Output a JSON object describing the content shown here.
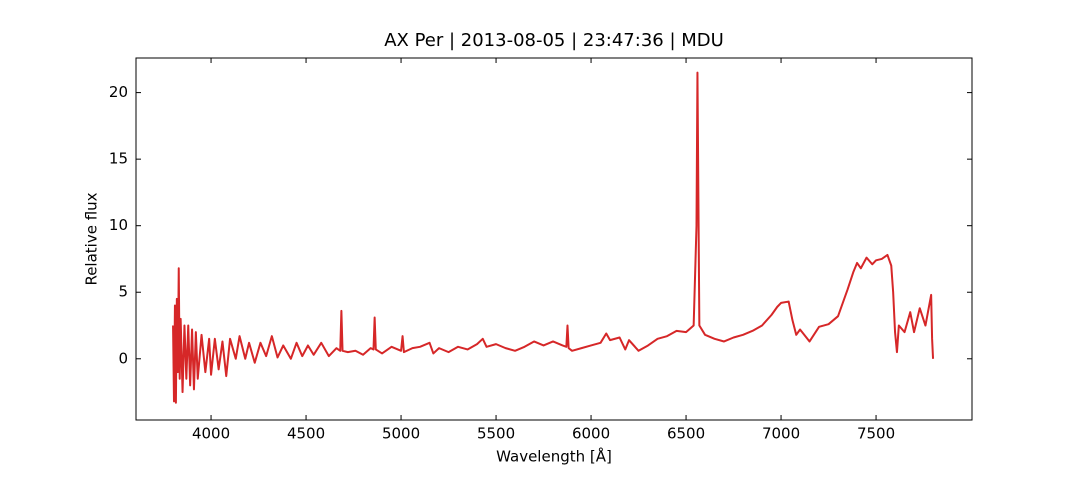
{
  "chart_data": {
    "type": "line",
    "title": "AX Per | 2013-08-05 | 23:47:36 | MDU",
    "x_label": "Wavelength [Å]",
    "y_label": "Relative flux",
    "xlim": [
      3605,
      8005
    ],
    "ylim": [
      -4.6,
      22.6
    ],
    "xticks": [
      4000,
      4500,
      5000,
      5500,
      6000,
      6500,
      7000,
      7500
    ],
    "yticks": [
      0,
      5,
      10,
      15,
      20
    ],
    "x": [
      3800,
      3805,
      3810,
      3815,
      3820,
      3825,
      3830,
      3835,
      3840,
      3850,
      3860,
      3870,
      3880,
      3890,
      3900,
      3910,
      3920,
      3930,
      3950,
      3970,
      3990,
      4000,
      4020,
      4040,
      4060,
      4080,
      4100,
      4130,
      4150,
      4180,
      4200,
      4230,
      4260,
      4290,
      4320,
      4350,
      4380,
      4420,
      4450,
      4480,
      4510,
      4540,
      4580,
      4620,
      4660,
      4680,
      4686,
      4692,
      4720,
      4760,
      4800,
      4840,
      4855,
      4861,
      4867,
      4900,
      4950,
      5000,
      5008,
      5015,
      5060,
      5100,
      5150,
      5170,
      5200,
      5250,
      5300,
      5350,
      5400,
      5430,
      5450,
      5500,
      5550,
      5600,
      5650,
      5700,
      5750,
      5800,
      5850,
      5870,
      5876,
      5882,
      5900,
      5950,
      6000,
      6050,
      6080,
      6100,
      6150,
      6180,
      6200,
      6250,
      6300,
      6350,
      6400,
      6450,
      6500,
      6540,
      6555,
      6560,
      6565,
      6570,
      6600,
      6650,
      6700,
      6750,
      6800,
      6850,
      6900,
      6950,
      6980,
      7000,
      7040,
      7060,
      7080,
      7100,
      7150,
      7200,
      7250,
      7300,
      7330,
      7350,
      7380,
      7400,
      7420,
      7450,
      7480,
      7500,
      7530,
      7560,
      7580,
      7590,
      7600,
      7610,
      7620,
      7650,
      7680,
      7700,
      7730,
      7760,
      7790,
      7795,
      7800
    ],
    "series": [
      {
        "color": "#d62728",
        "values": [
          2.5,
          -3.2,
          4,
          -3.3,
          4.5,
          -1,
          6.8,
          -1.5,
          3,
          -2.5,
          2.5,
          -1.5,
          2.5,
          -2,
          2.2,
          -2.3,
          2,
          -1.5,
          1.8,
          -1,
          1.5,
          -1.2,
          1.5,
          -0.8,
          1.3,
          -1.3,
          1.5,
          0,
          1.7,
          0,
          1.2,
          -0.3,
          1.2,
          0.2,
          1.7,
          0.1,
          1,
          0,
          1.2,
          0.2,
          1,
          0.3,
          1.2,
          0.2,
          0.8,
          0.6,
          3.6,
          0.6,
          0.5,
          0.6,
          0.3,
          0.8,
          0.7,
          3.1,
          0.7,
          0.4,
          0.9,
          0.6,
          1.7,
          0.5,
          0.8,
          0.9,
          1.2,
          0.4,
          0.8,
          0.5,
          0.9,
          0.7,
          1.1,
          1.5,
          0.9,
          1.1,
          0.8,
          0.6,
          0.9,
          1.3,
          1.0,
          1.3,
          1.0,
          0.9,
          2.5,
          0.8,
          0.6,
          0.8,
          1.0,
          1.2,
          1.9,
          1.4,
          1.6,
          0.7,
          1.4,
          0.6,
          1.0,
          1.5,
          1.7,
          2.1,
          2.0,
          2.5,
          10,
          21.5,
          12,
          2.5,
          1.8,
          1.5,
          1.3,
          1.6,
          1.8,
          2.1,
          2.5,
          3.3,
          3.9,
          4.2,
          4.3,
          2.9,
          1.8,
          2.2,
          1.3,
          2.4,
          2.6,
          3.2,
          4.4,
          5.2,
          6.5,
          7.2,
          6.8,
          7.6,
          7.1,
          7.4,
          7.5,
          7.8,
          7.0,
          5.0,
          2.0,
          0.5,
          2.5,
          2.0,
          3.5,
          2.0,
          3.8,
          2.5,
          4.8,
          1.5,
          0
        ]
      }
    ]
  }
}
